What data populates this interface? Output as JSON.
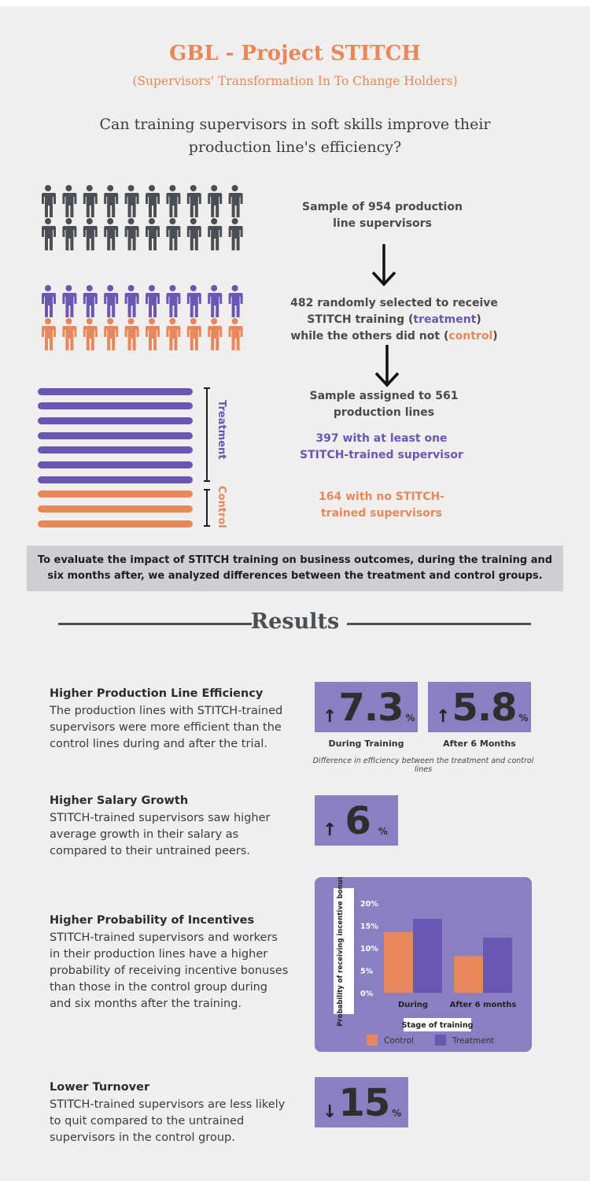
{
  "header": {
    "title": "GBL - Project STITCH",
    "subtitle": "(Supervisors' Transformation In To Change Holders)",
    "question": "Can training supervisors in soft skills improve their production line's efficiency?"
  },
  "flow": {
    "step1": "Sample of 954 production line supervisors",
    "step2_a": "482 randomly selected to receive STITCH training (",
    "step2_treatment": "treatment",
    "step2_b": ") while the others did not (",
    "step2_control": "control",
    "step2_c": ")",
    "step3": "Sample assigned to 561 production lines",
    "step4": "397 with at least one STITCH-trained supervisor",
    "step5": "164 with no STITCH-trained supervisors",
    "bracket_treatment": "Treatment",
    "bracket_control": "Control"
  },
  "colors": {
    "dark": "#4a4f55",
    "purple": "#6a57b3",
    "orange": "#e8875a",
    "box": "#8a7fc1"
  },
  "banner": "To evaluate the impact of STITCH training on business outcomes, during the training and six months after, we analyzed differences between the treatment and control groups.",
  "results": {
    "heading": "Results",
    "efficiency": {
      "title": "Higher Production Line Efficiency",
      "body": "The production lines with STITCH-trained supervisors were more efficient than the control lines during and after the trial.",
      "during_value": "7.3",
      "during_unit": "%",
      "during_label": "During Training",
      "after_value": "5.8",
      "after_unit": "%",
      "after_label": "After 6 Months",
      "note": "Difference in efficiency between the treatment and control lines",
      "arrow": "up-arrow-icon"
    },
    "salary": {
      "title": "Higher Salary Growth",
      "body": "STITCH-trained supervisors saw higher average growth in their salary as compared to their untrained peers.",
      "value": "6",
      "unit": "%"
    },
    "incentives": {
      "title": "Higher Probability of Incentives",
      "body": "STITCH-trained supervisors and workers in their production lines have a higher probability of receiving incentive bonuses than those in the control group during and six months after the training."
    },
    "turnover": {
      "title": "Lower Turnover",
      "body": "STITCH-trained supervisors are less likely to quit compared to the untrained supervisors in the control group.",
      "value": "15",
      "unit": "%"
    }
  },
  "chart_data": {
    "type": "bar",
    "categories": [
      "During",
      "After 6 months"
    ],
    "series": [
      {
        "name": "Control",
        "values": [
          13.5,
          8.2
        ]
      },
      {
        "name": "Treatment",
        "values": [
          16.5,
          12.3
        ]
      }
    ],
    "xlabel": "Stage of training",
    "ylabel": "Probability of receiving incentive bonus",
    "ylim": [
      0,
      20
    ],
    "yticks": [
      "0%",
      "5%",
      "10%",
      "15%",
      "20%"
    ],
    "legend": "bottom",
    "colors": [
      "#e8875a",
      "#6a57b3"
    ]
  }
}
